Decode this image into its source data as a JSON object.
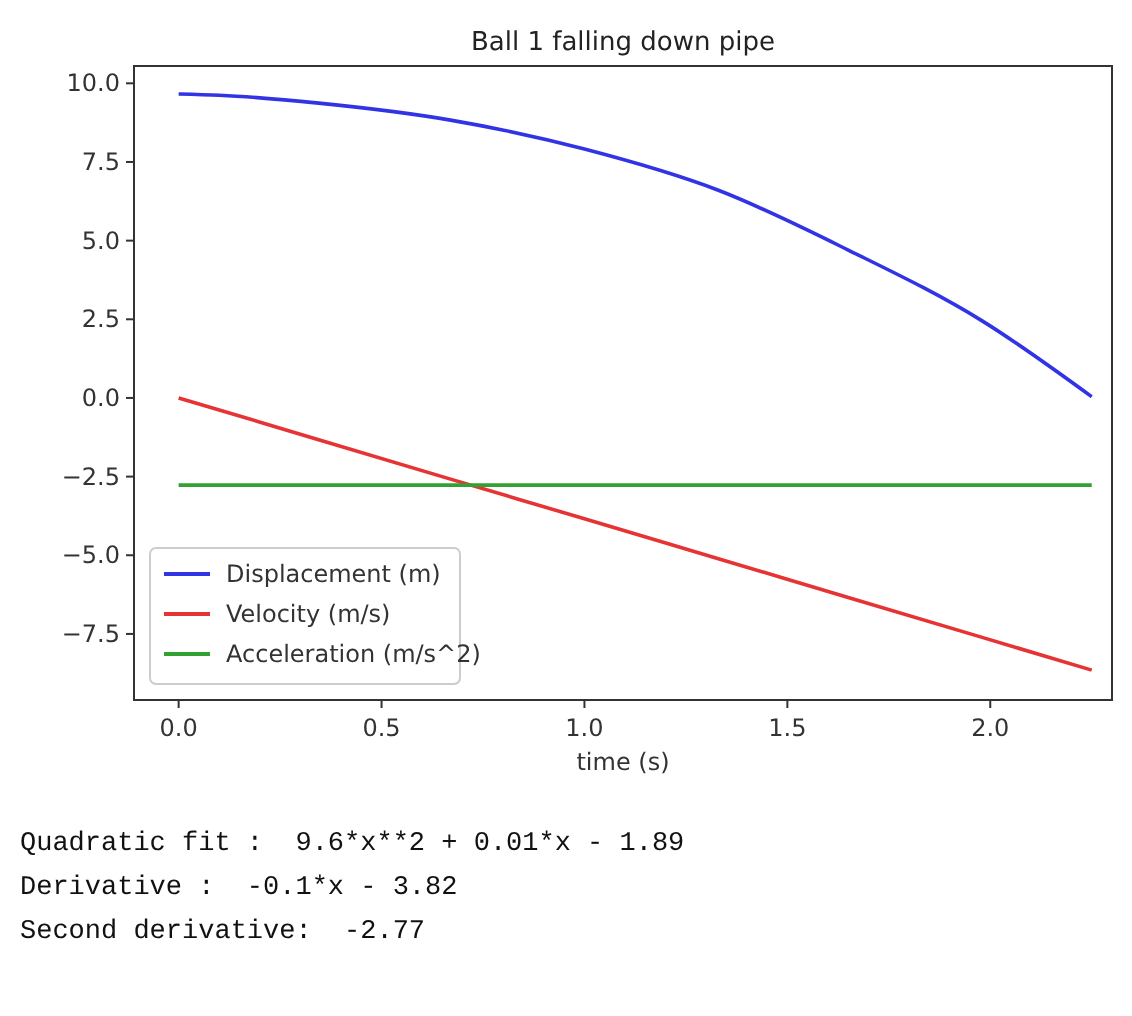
{
  "chart_data": {
    "type": "line",
    "title": "Ball 1 falling down pipe",
    "xlabel": "time (s)",
    "x": [
      0,
      0.1,
      0.345,
      0.67,
      1.0,
      1.33,
      1.65,
      1.98,
      2.25
    ],
    "series": [
      {
        "name": "Displacement (m)",
        "color": "#3333e6",
        "values": [
          9.66,
          9.62,
          9.37,
          8.83,
          7.91,
          6.6,
          4.7,
          2.45,
          0.04
        ]
      },
      {
        "name": "Velocity (m/s)",
        "color": "#e63333",
        "values": [
          0,
          -0.38,
          -1.33,
          -2.58,
          -3.84,
          -5.11,
          -6.34,
          -7.61,
          -8.65
        ]
      },
      {
        "name": "Acceleration (m/s^2)",
        "color": "#33a033",
        "values": [
          -2.77,
          -2.77,
          -2.77,
          -2.77,
          -2.77,
          -2.77,
          -2.77,
          -2.77,
          -2.77
        ]
      }
    ],
    "xlim": [
      -0.11,
      2.3
    ],
    "ylim": [
      -9.6,
      10.55
    ],
    "xticks": [
      {
        "value": 0,
        "label": "0.0"
      },
      0.5,
      {
        "value": 1,
        "label": "1.0"
      },
      1.5,
      {
        "value": 2,
        "label": "2.0"
      }
    ],
    "yticks": [
      {
        "value": -7.5,
        "label": "−7.5"
      },
      {
        "value": -5,
        "label": "−5.0"
      },
      {
        "value": -2.5,
        "label": "−2.5"
      },
      {
        "value": 0,
        "label": "0.0"
      },
      2.5,
      {
        "value": 5,
        "label": "5.0"
      },
      7.5,
      {
        "value": 10,
        "label": "10.0"
      }
    ],
    "legend": "bottom left",
    "grid": false,
    "line_style": "solid",
    "marker": "none",
    "annotations": [
      "Quadratic fit :  9.6*x**2 + 0.01*x - 1.89",
      "Derivative :  -0.1*x - 3.82",
      "Second derivative:  -2.77"
    ]
  }
}
